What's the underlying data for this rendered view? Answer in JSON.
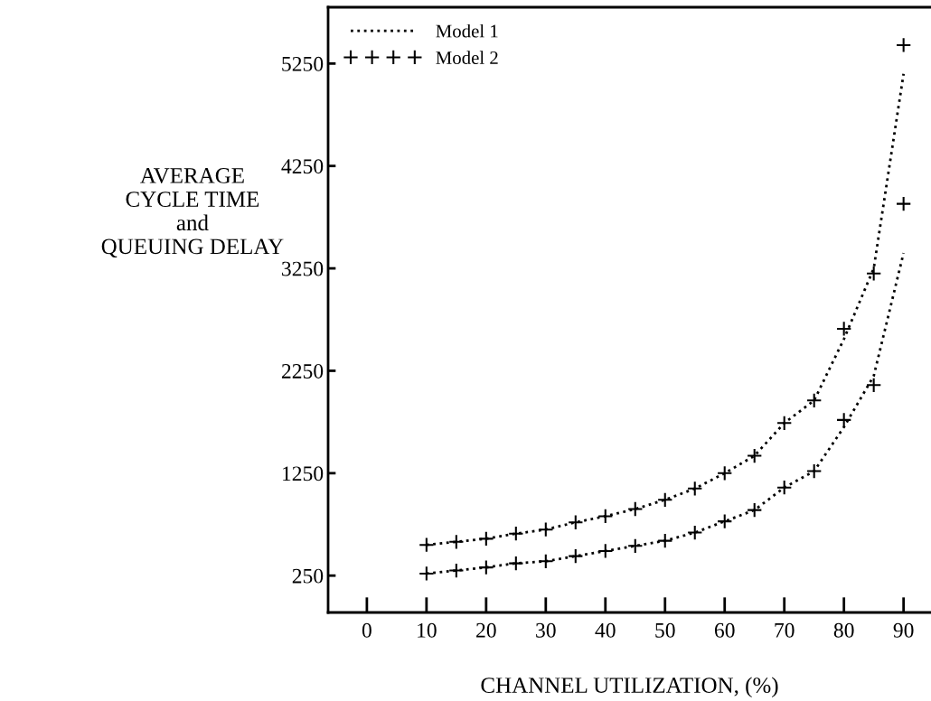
{
  "chart_data": {
    "type": "line",
    "xlabel": "CHANNEL UTILIZATION, (%)",
    "ylabel": "AVERAGE\nCYCLE TIME\nand\nQUEUING DELAY",
    "xlim": [
      -6.5,
      94.6
    ],
    "xticks": [
      0,
      10,
      20,
      30,
      40,
      50,
      60,
      70,
      80,
      90
    ],
    "ylim": [
      -110,
      5800
    ],
    "yticks": [
      250,
      1250,
      2250,
      3250,
      4250,
      5250
    ],
    "grid": false,
    "legend": "top left",
    "series": [
      {
        "name": "Model 1",
        "line_style": "dotted",
        "marker": "none",
        "color": "#000000",
        "x": [
          10,
          15,
          20,
          25,
          30,
          35,
          40,
          45,
          50,
          55,
          60,
          65,
          70,
          75,
          80,
          85,
          90
        ],
        "values": [
          550,
          580,
          610,
          660,
          700,
          770,
          830,
          900,
          990,
          1100,
          1250,
          1420,
          1740,
          1960,
          2560,
          3250,
          5150
        ]
      },
      {
        "line_style": "dotted",
        "marker": "none",
        "color": "#000000",
        "x": [
          10,
          15,
          20,
          25,
          30,
          35,
          40,
          45,
          50,
          55,
          60,
          65,
          70,
          75,
          80,
          85,
          90
        ],
        "values": [
          270,
          300,
          330,
          370,
          390,
          440,
          490,
          540,
          590,
          670,
          780,
          890,
          1110,
          1270,
          1700,
          2200,
          3400
        ]
      },
      {
        "name": "Model 2",
        "type": "scatter",
        "marker": "cross",
        "color": "#000000",
        "x": [
          10,
          15,
          20,
          25,
          30,
          35,
          40,
          45,
          50,
          55,
          60,
          65,
          70,
          75,
          80,
          85,
          90
        ],
        "values": [
          550,
          580,
          610,
          660,
          700,
          770,
          830,
          900,
          990,
          1100,
          1250,
          1420,
          1740,
          1960,
          2660,
          3200,
          5430
        ]
      },
      {
        "type": "scatter",
        "marker": "cross",
        "color": "#000000",
        "x": [
          10,
          15,
          20,
          25,
          30,
          35,
          40,
          45,
          50,
          55,
          60,
          65,
          70,
          75,
          80,
          85,
          90
        ],
        "values": [
          270,
          300,
          330,
          370,
          390,
          440,
          490,
          540,
          590,
          670,
          780,
          890,
          1110,
          1270,
          1770,
          2110,
          3880
        ]
      }
    ]
  }
}
